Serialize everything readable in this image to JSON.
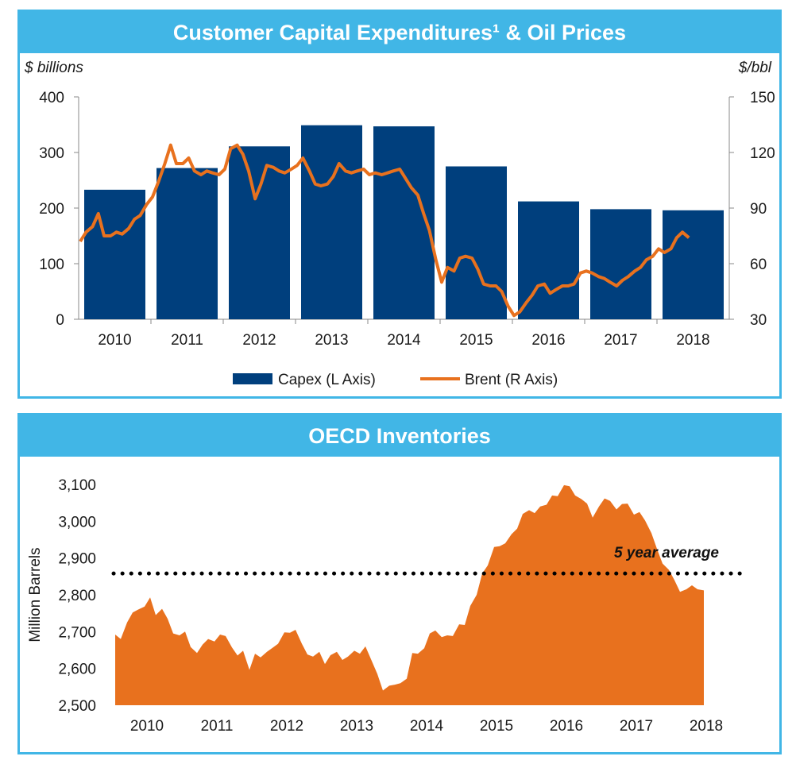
{
  "colors": {
    "header_bg": "#41b6e6",
    "capex": "#003f7d",
    "brent": "#e8711e",
    "inventory": "#e8711e",
    "average_line": "#000000"
  },
  "chart_data": [
    {
      "type": "bar+line",
      "title": "Customer Capital Expenditures¹ & Oil Prices",
      "left_axis_unit": "$ billions",
      "right_axis_unit": "$/bbl",
      "left_ylim": [
        0,
        400
      ],
      "right_ylim": [
        30,
        150
      ],
      "left_ticks": [
        "0",
        "100",
        "200",
        "300",
        "400"
      ],
      "right_ticks": [
        "30",
        "60",
        "90",
        "120",
        "150"
      ],
      "categories": [
        "2010",
        "2011",
        "2012",
        "2013",
        "2014",
        "2015",
        "2016",
        "2017",
        "2018"
      ],
      "legend_position": "bottom",
      "series": [
        {
          "name": "Capex (L Axis)",
          "axis": "left",
          "kind": "bar",
          "values": [
            233,
            272,
            311,
            349,
            347,
            275,
            212,
            198,
            196
          ]
        },
        {
          "name": "Brent (R Axis)",
          "axis": "right",
          "kind": "line",
          "x": [
            2010.0,
            2010.08,
            2010.17,
            2010.25,
            2010.33,
            2010.42,
            2010.5,
            2010.58,
            2010.67,
            2010.75,
            2010.83,
            2010.92,
            2011.0,
            2011.08,
            2011.17,
            2011.25,
            2011.33,
            2011.42,
            2011.5,
            2011.58,
            2011.67,
            2011.75,
            2011.83,
            2011.92,
            2012.0,
            2012.08,
            2012.17,
            2012.25,
            2012.33,
            2012.42,
            2012.5,
            2012.58,
            2012.67,
            2012.75,
            2012.83,
            2012.92,
            2013.0,
            2013.08,
            2013.17,
            2013.25,
            2013.33,
            2013.42,
            2013.5,
            2013.58,
            2013.67,
            2013.75,
            2013.83,
            2013.92,
            2014.0,
            2014.08,
            2014.17,
            2014.25,
            2014.33,
            2014.42,
            2014.5,
            2014.58,
            2014.67,
            2014.75,
            2014.83,
            2014.92,
            2015.0,
            2015.08,
            2015.17,
            2015.25,
            2015.33,
            2015.42,
            2015.5,
            2015.58,
            2015.67,
            2015.75,
            2015.83,
            2015.92,
            2016.0,
            2016.08,
            2016.17,
            2016.25,
            2016.33,
            2016.42,
            2016.5,
            2016.58,
            2016.67,
            2016.75,
            2016.83,
            2016.92,
            2017.0,
            2017.08,
            2017.17,
            2017.25,
            2017.33,
            2017.42,
            2017.5,
            2017.58,
            2017.67,
            2017.75,
            2017.83,
            2017.92,
            2018.0,
            2018.08,
            2018.17,
            2018.25,
            2018.33,
            2018.42
          ],
          "values": [
            72,
            77,
            80,
            87,
            75,
            75,
            77,
            76,
            79,
            84,
            86,
            92,
            96,
            104,
            114,
            124,
            114,
            114,
            117,
            110,
            108,
            110,
            109,
            108,
            111,
            122,
            124,
            119,
            110,
            95,
            103,
            113,
            112,
            110,
            109,
            111,
            113,
            117,
            110,
            103,
            102,
            103,
            107,
            114,
            110,
            109,
            110,
            111,
            108,
            109,
            108,
            109,
            110,
            111,
            106,
            101,
            97,
            87,
            78,
            62,
            50,
            58,
            56,
            63,
            64,
            63,
            57,
            49,
            48,
            48,
            45,
            37,
            32,
            34,
            39,
            43,
            48,
            49,
            44,
            46,
            48,
            48,
            49,
            55,
            56,
            55,
            53,
            52,
            50,
            48,
            51,
            53,
            56,
            58,
            62,
            64,
            68,
            66,
            68,
            74,
            77,
            74
          ]
        }
      ]
    },
    {
      "type": "area",
      "title": "OECD Inventories",
      "ylabel": "Million Barrels",
      "ylim": [
        2500,
        3100
      ],
      "y_ticks": [
        "2,500",
        "2,600",
        "2,700",
        "2,800",
        "2,900",
        "3,000",
        "3,100"
      ],
      "categories": [
        "2010",
        "2011",
        "2012",
        "2013",
        "2014",
        "2015",
        "2016",
        "2017",
        "2018"
      ],
      "reference_line": {
        "label": "5 year average",
        "value": 2858
      },
      "series": [
        {
          "name": "",
          "kind": "area",
          "x": [
            2010.0,
            2010.08,
            2010.17,
            2010.25,
            2010.33,
            2010.42,
            2010.5,
            2010.58,
            2010.67,
            2010.75,
            2010.83,
            2010.92,
            2011.0,
            2011.08,
            2011.17,
            2011.25,
            2011.33,
            2011.42,
            2011.5,
            2011.58,
            2011.67,
            2011.75,
            2011.83,
            2011.92,
            2012.0,
            2012.08,
            2012.17,
            2012.25,
            2012.33,
            2012.42,
            2012.5,
            2012.58,
            2012.67,
            2012.75,
            2012.83,
            2012.92,
            2013.0,
            2013.08,
            2013.17,
            2013.25,
            2013.33,
            2013.42,
            2013.5,
            2013.58,
            2013.67,
            2013.75,
            2013.83,
            2013.92,
            2014.0,
            2014.08,
            2014.17,
            2014.25,
            2014.33,
            2014.42,
            2014.5,
            2014.58,
            2014.67,
            2014.75,
            2014.83,
            2014.92,
            2015.0,
            2015.08,
            2015.17,
            2015.25,
            2015.33,
            2015.42,
            2015.5,
            2015.58,
            2015.67,
            2015.75,
            2015.83,
            2015.92,
            2016.0,
            2016.08,
            2016.17,
            2016.25,
            2016.33,
            2016.42,
            2016.5,
            2016.58,
            2016.67,
            2016.75,
            2016.83,
            2016.92,
            2017.0,
            2017.08,
            2017.17,
            2017.25,
            2017.33,
            2017.42,
            2017.5,
            2017.58,
            2017.67,
            2017.75,
            2017.83,
            2017.92,
            2018.0,
            2018.08,
            2018.17,
            2018.25,
            2018.33,
            2018.42
          ],
          "values": [
            2692,
            2680,
            2725,
            2752,
            2760,
            2768,
            2793,
            2745,
            2762,
            2735,
            2695,
            2690,
            2700,
            2658,
            2642,
            2665,
            2680,
            2673,
            2692,
            2688,
            2657,
            2635,
            2648,
            2596,
            2640,
            2630,
            2645,
            2656,
            2667,
            2698,
            2697,
            2705,
            2667,
            2638,
            2632,
            2645,
            2612,
            2636,
            2645,
            2623,
            2632,
            2648,
            2640,
            2660,
            2620,
            2585,
            2540,
            2553,
            2556,
            2560,
            2572,
            2642,
            2640,
            2655,
            2695,
            2703,
            2685,
            2690,
            2688,
            2720,
            2718,
            2770,
            2800,
            2858,
            2880,
            2930,
            2932,
            2940,
            2965,
            2980,
            3020,
            3030,
            3022,
            3040,
            3045,
            3070,
            3068,
            3098,
            3095,
            3070,
            3060,
            3048,
            3010,
            3040,
            3062,
            3055,
            3032,
            3047,
            3048,
            3018,
            3025,
            3002,
            2968,
            2925,
            2885,
            2868,
            2840,
            2808,
            2815,
            2826,
            2815,
            2812
          ]
        }
      ]
    }
  ]
}
